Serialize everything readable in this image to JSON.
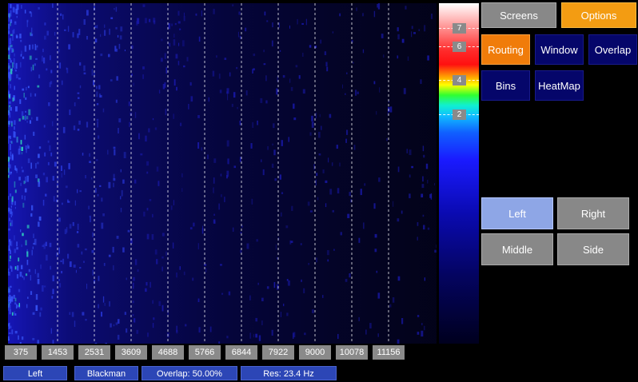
{
  "colorbar": {
    "labels": [
      "7",
      "6",
      "4",
      "2"
    ]
  },
  "top_buttons": {
    "screens": "Screens",
    "options": "Options"
  },
  "option_buttons": {
    "routing": "Routing",
    "window": "Window",
    "overlap": "Overlap",
    "bins": "Bins",
    "heatmap": "HeatMap"
  },
  "channel_buttons": {
    "left": "Left",
    "right": "Right",
    "middle": "Middle",
    "side": "Side"
  },
  "freq_ticks": [
    "375",
    "1453",
    "2531",
    "3609",
    "4688",
    "5766",
    "6844",
    "7922",
    "9000",
    "10078",
    "11156"
  ],
  "status": {
    "channel": "Left",
    "window": "Blackman",
    "overlap": "Overlap: 50.00%",
    "resolution": "Res: 23.4 Hz"
  },
  "colors": {
    "accent_orange": "#f39c12",
    "navy": "#05066a",
    "active_blue": "#8ea6e6",
    "status_blue": "#2c46b6"
  }
}
